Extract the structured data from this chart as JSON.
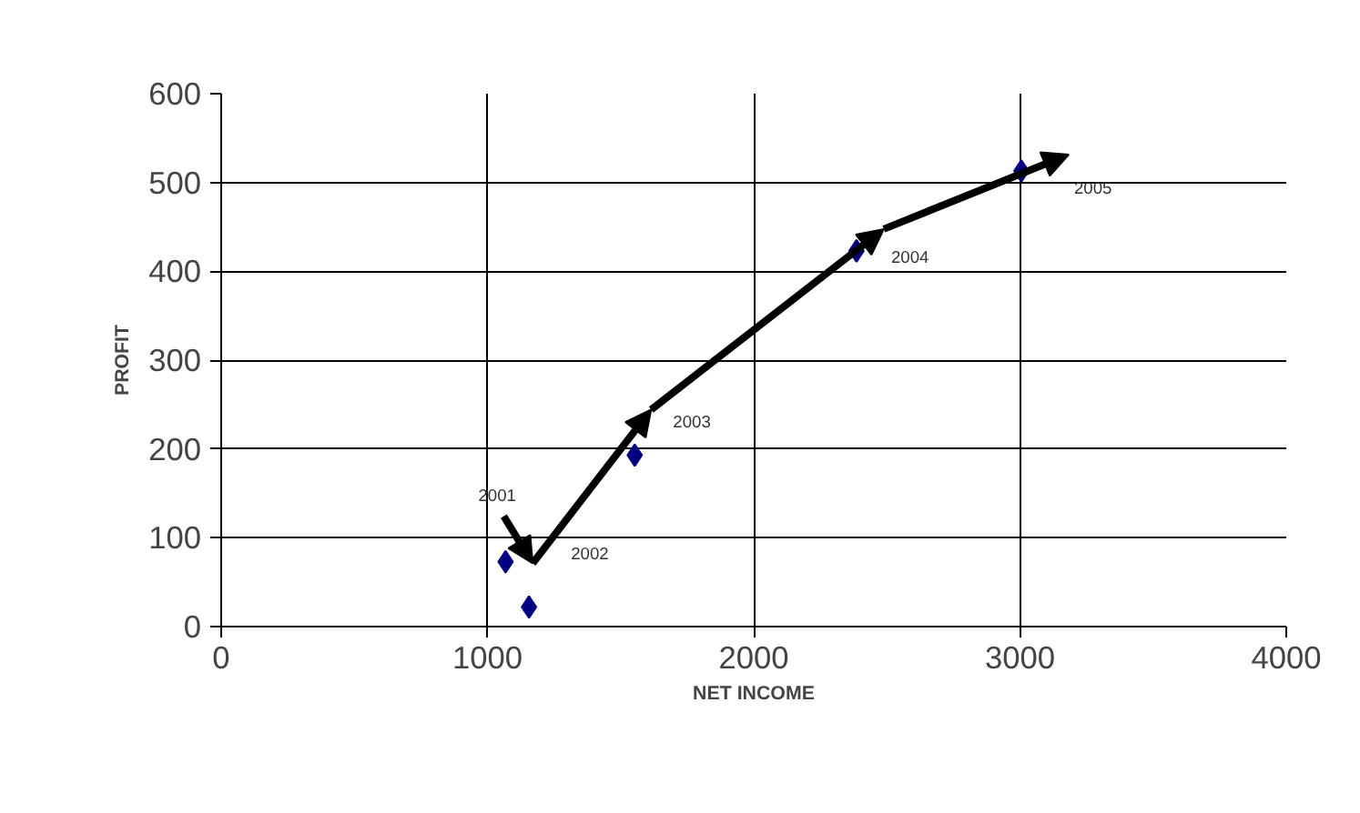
{
  "chart_data": {
    "type": "scatter",
    "xlabel": "NET INCOME",
    "ylabel": "PROFIT",
    "xlim": [
      0,
      4000
    ],
    "xticks": [
      0,
      1000,
      2000,
      3000,
      4000
    ],
    "ylim": [
      0,
      600
    ],
    "yticks": [
      0,
      100,
      200,
      300,
      400,
      500,
      600
    ],
    "grid": true,
    "marker": "diamond",
    "series": [
      {
        "color": "#000080",
        "x": [
          1068,
          1156,
          1553,
          2386,
          3005
        ],
        "values": [
          73,
          22,
          193,
          423,
          513
        ]
      }
    ],
    "annotations": [
      "2001",
      "2002",
      "2003",
      "2004",
      "2005"
    ]
  }
}
